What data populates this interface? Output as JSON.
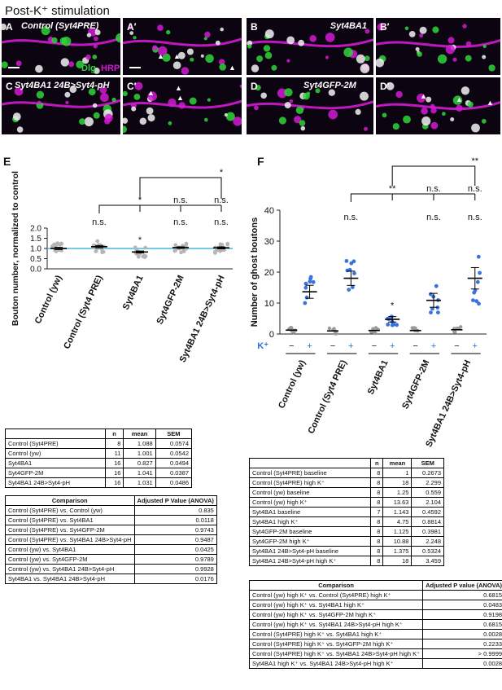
{
  "title": "Post-K⁺ stimulation",
  "images": {
    "panels": [
      {
        "tag": "A",
        "geno": "Control (Syt4PRE)"
      },
      {
        "tag": "A′",
        "geno": ""
      },
      {
        "tag": "B",
        "geno": "Syt4BA1"
      },
      {
        "tag": "B′",
        "geno": ""
      },
      {
        "tag": "C",
        "geno": "Syt4BA1 24B>Syt4-pH"
      },
      {
        "tag": "C′",
        "geno": ""
      },
      {
        "tag": "D",
        "geno": "Syt4GFP-2M"
      },
      {
        "tag": "D′",
        "geno": ""
      }
    ],
    "legend_dlg": "Dlg",
    "legend_hrp": "HRP",
    "colors": {
      "magenta": "#d21bd2",
      "green": "#2fd33a",
      "white": "#f2f2f2"
    }
  },
  "panel_e": {
    "letter": "E",
    "chart_data": {
      "type": "scatter",
      "ylabel": "Bouton number, normalized to control",
      "ylim": [
        0.0,
        2.0
      ],
      "yticks": [
        "0.0",
        "0.5",
        "1.0",
        "1.5",
        "2.0"
      ],
      "categories": [
        "Control (yw)",
        "Control (Syt4 PRE)",
        "Syt4BA1",
        "Syt4GFP-2M",
        "Syt4BA1 24B>Syt4-pH"
      ],
      "means": [
        1.001,
        1.088,
        0.827,
        1.041,
        1.031
      ],
      "sem": [
        0.0542,
        0.0574,
        0.0494,
        0.0387,
        0.0486
      ],
      "sig_labels": [
        "n.s.",
        "*",
        "n.s.",
        "n.s."
      ],
      "bracket_labels": [
        "*",
        "*",
        "n.s.",
        "n.s."
      ]
    },
    "table": {
      "headers": [
        "",
        "n",
        "mean",
        "SEM"
      ],
      "rows": [
        [
          "Control (Syt4PRE)",
          "8",
          "1.088",
          "0.0574"
        ],
        [
          "Control (yw)",
          "11",
          "1.001",
          "0.0542"
        ],
        [
          "Syt4BA1",
          "16",
          "0.827",
          "0.0494"
        ],
        [
          "Syt4GFP-2M",
          "16",
          "1.041",
          "0.0387"
        ],
        [
          "Syt4BA1 24B>Syt4-pH",
          "16",
          "1.031",
          "0.0486"
        ]
      ]
    },
    "comparison_table": {
      "headers": [
        "Comparison",
        "Adjusted P Value (ANOVA)"
      ],
      "rows": [
        [
          "Control (Syt4PRE) vs. Control (yw)",
          "0.835"
        ],
        [
          "Control (Syt4PRE) vs. Syt4BA1",
          "0.0118"
        ],
        [
          "Control (Syt4PRE) vs. Syt4GFP-2M",
          "0.9743"
        ],
        [
          "Control (Syt4PRE) vs. Syt4BA1 24B>Syt4-pH",
          "0.9487"
        ],
        [
          "Control (yw) vs. Syt4BA1",
          "0.0425"
        ],
        [
          "Control (yw) vs. Syt4GFP-2M",
          "0.9789"
        ],
        [
          "Control (yw) vs. Syt4BA1 24B>Syt4-pH",
          "0.9928"
        ],
        [
          "Syt4BA1 vs. Syt4BA1 24B>Syt4-pH",
          "0.0176"
        ]
      ]
    }
  },
  "panel_f": {
    "letter": "F",
    "chart_data": {
      "type": "scatter",
      "ylabel": "Number of ghost boutons",
      "ylim": [
        0,
        40
      ],
      "yticks": [
        "0",
        "10",
        "20",
        "30",
        "40"
      ],
      "kplus_label": "K⁺",
      "categories": [
        "Control (yw)",
        "Control (Syt4 PRE)",
        "Syt4BA1",
        "Syt4GFP-2M",
        "Syt4BA1 24B>Syt4-pH"
      ],
      "baseline_means": [
        1.25,
        1,
        1.143,
        1.125,
        1.375
      ],
      "highk_means": [
        13.63,
        18,
        4.75,
        10.88,
        18
      ],
      "highk_sem": [
        2.104,
        2.299,
        0.8814,
        2.248,
        3.459
      ],
      "sig_labels": [
        "n.s.",
        "*",
        "n.s.",
        "n.s."
      ],
      "bracket_labels": [
        "**",
        "**",
        "n.s.",
        "n.s."
      ]
    },
    "table": {
      "headers": [
        "",
        "n",
        "mean",
        "SEM"
      ],
      "rows": [
        [
          "Control (Syt4PRE) baseline",
          "8",
          "1",
          "0.2673"
        ],
        [
          "Control (Syt4PRE) high K⁺",
          "8",
          "18",
          "2.299"
        ],
        [
          "Control (yw) baseline",
          "8",
          "1.25",
          "0.559"
        ],
        [
          "Control (yw) high K⁺",
          "8",
          "13.63",
          "2.104"
        ],
        [
          "Syt4BA1 baseline",
          "7",
          "1.143",
          "0.4592"
        ],
        [
          "Syt4BA1 high K⁺",
          "8",
          "4.75",
          "0.8814"
        ],
        [
          "Syt4GFP-2M baseline",
          "8",
          "1.125",
          "0.3981"
        ],
        [
          "Syt4GFP-2M high K⁺",
          "8",
          "10.88",
          "2.248"
        ],
        [
          "Syt4BA1 24B>Syt4-pH baseline",
          "8",
          "1.375",
          "0.5324"
        ],
        [
          "Syt4BA1 24B>Syt4-pH high K⁺",
          "8",
          "18",
          "3.459"
        ]
      ]
    },
    "comparison_table": {
      "headers": [
        "Comparison",
        "Adjusted P value (ANOVA)"
      ],
      "rows": [
        [
          "Control (yw) high K⁺ vs. Control (Syt4PRE) high K⁺",
          "0.6815"
        ],
        [
          "Control (yw) high K⁺ vs. Syt4BA1 high K⁺",
          "0.0483"
        ],
        [
          "Control (yw) high K⁺ vs. Syt4GFP-2M high K⁺",
          "0.9198"
        ],
        [
          "Control (yw) high K⁺ vs. Syt4BA1 24B>Syt4-pH high K⁺",
          "0.6815"
        ],
        [
          "Control (Syt4PRE) high K⁺ vs. Syt4BA1 high K⁺",
          "0.0028"
        ],
        [
          "Control (Syt4PRE) high K⁺ vs. Syt4GFP-2M high K⁺",
          "0.2233"
        ],
        [
          "Control (Syt4PRE) high K⁺ vs. Syt4BA1 24B>Syt4-pH high K⁺",
          "> 0.9999"
        ],
        [
          "Syt4BA1 high K⁺ vs. Syt4BA1 24B>Syt4-pH high K⁺",
          "0.0028"
        ]
      ]
    }
  }
}
